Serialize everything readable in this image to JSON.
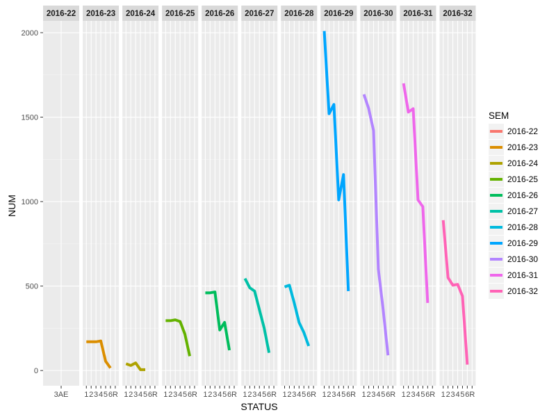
{
  "chart_data": {
    "type": "line",
    "xlabel": "STATUS",
    "ylabel": "NUM",
    "ylim": [
      -90,
      2070
    ],
    "yticks": [
      "0",
      "500",
      "1000",
      "1500",
      "2000"
    ],
    "ytick_values": [
      0,
      500,
      1000,
      1500,
      2000
    ],
    "legend": {
      "title": "SEM",
      "placement": "right"
    },
    "grid": true,
    "panels": [
      {
        "name": "2016-22",
        "color": "#F8766D",
        "xticks": [
          "3AE"
        ],
        "values": []
      },
      {
        "name": "2016-23",
        "color": "#DB8E00",
        "xticks": [
          "1",
          "2",
          "3",
          "4",
          "5",
          "6",
          "R"
        ],
        "values": [
          170,
          170,
          170,
          175,
          55,
          15
        ]
      },
      {
        "name": "2016-24",
        "color": "#AEA200",
        "xticks": [
          "1",
          "2",
          "3",
          "4",
          "5",
          "6",
          "R"
        ],
        "values": [
          40,
          30,
          45,
          5,
          5
        ]
      },
      {
        "name": "2016-25",
        "color": "#64B200",
        "xticks": [
          "1",
          "2",
          "3",
          "4",
          "5",
          "6",
          "R"
        ],
        "values": [
          295,
          295,
          300,
          290,
          215,
          85
        ]
      },
      {
        "name": "2016-26",
        "color": "#00BD5C",
        "xticks": [
          "1",
          "2",
          "3",
          "4",
          "5",
          "6",
          "R"
        ],
        "values": [
          460,
          460,
          465,
          240,
          285,
          120
        ]
      },
      {
        "name": "2016-27",
        "color": "#00C1A7",
        "xticks": [
          "1",
          "2",
          "3",
          "4",
          "5",
          "6",
          "R"
        ],
        "values": [
          545,
          490,
          470,
          360,
          250,
          105
        ]
      },
      {
        "name": "2016-28",
        "color": "#00BADE",
        "xticks": [
          "1",
          "2",
          "3",
          "4",
          "5",
          "6",
          "R"
        ],
        "values": [
          495,
          505,
          400,
          285,
          225,
          145
        ]
      },
      {
        "name": "2016-29",
        "color": "#00A6FF",
        "xticks": [
          "1",
          "2",
          "3",
          "4",
          "5",
          "6",
          "R"
        ],
        "values": [
          2010,
          1520,
          1575,
          1010,
          1160,
          470
        ]
      },
      {
        "name": "2016-30",
        "color": "#B385FF",
        "xticks": [
          "1",
          "2",
          "3",
          "4",
          "5",
          "6",
          "R"
        ],
        "values": [
          1635,
          1550,
          1420,
          600,
          360,
          90
        ]
      },
      {
        "name": "2016-31",
        "color": "#EF67EB",
        "xticks": [
          "1",
          "2",
          "3",
          "4",
          "5",
          "6",
          "R"
        ],
        "values": [
          1700,
          1530,
          1550,
          1010,
          970,
          400
        ]
      },
      {
        "name": "2016-32",
        "color": "#FF63B6",
        "xticks": [
          "1",
          "2",
          "3",
          "4",
          "5",
          "6",
          "R"
        ],
        "values": [
          890,
          550,
          505,
          510,
          440,
          35
        ]
      }
    ]
  }
}
